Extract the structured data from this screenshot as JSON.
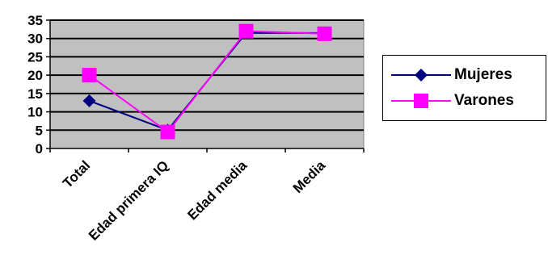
{
  "chart_data": {
    "type": "line",
    "categories": [
      "Total",
      "Edad primera IQ",
      "Edad media",
      "Media"
    ],
    "ylim": [
      0,
      35
    ],
    "yticks": [
      "0",
      "5",
      "10",
      "15",
      "20",
      "25",
      "30",
      "35"
    ],
    "grid": true,
    "legend_position": "right",
    "series": [
      {
        "name": "Mujeres",
        "values": [
          13,
          5,
          31.5,
          31.5
        ],
        "color": "#000080",
        "marker": "diamond"
      },
      {
        "name": "Varones",
        "values": [
          20,
          4.5,
          32,
          31.3
        ],
        "color": "#ff00ff",
        "marker": "square"
      }
    ]
  },
  "colors": {
    "plot_bg": "#c0c0c0",
    "grid": "#000000"
  }
}
